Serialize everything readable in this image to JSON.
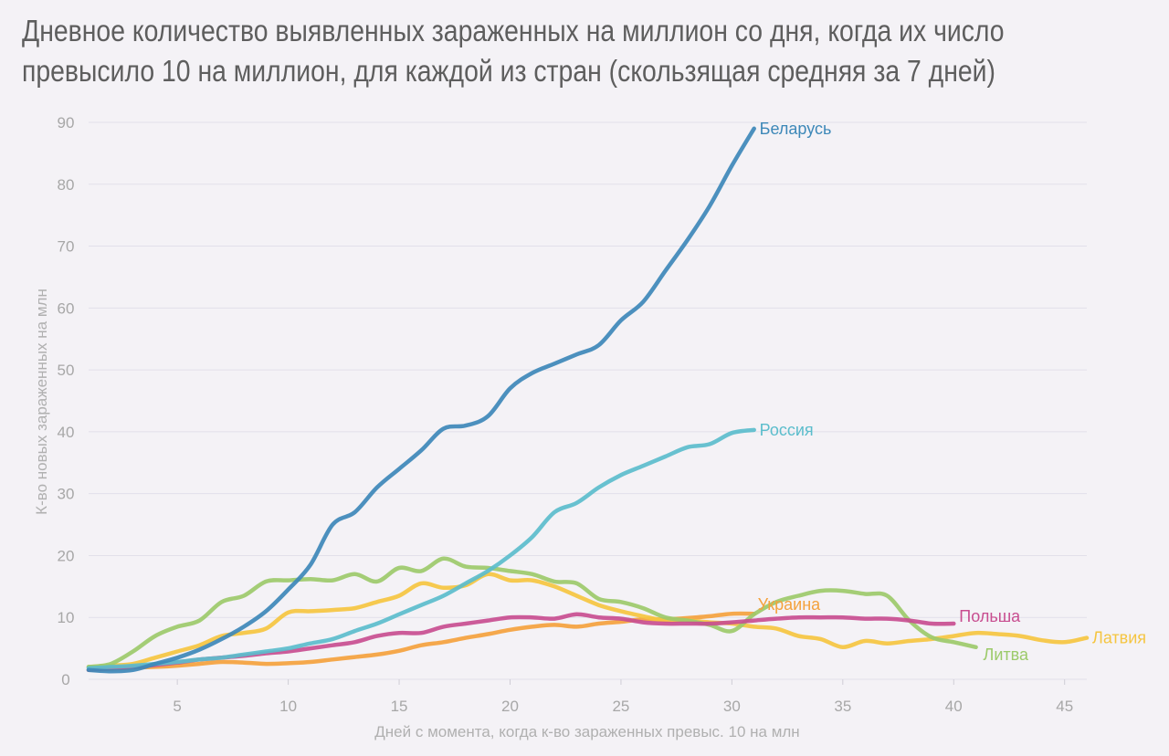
{
  "chart_data": {
    "type": "line",
    "title": "Дневное количество выявленных зараженных на миллион со дня, когда их число превысило 10 на миллион, для каждой из стран (скользящая средняя за 7 дней)",
    "title_lines": [
      "Дневное количество выявленных зараженных на миллион со дня, когда их число",
      "превысило 10 на миллион, для каждой из стран (скользящая средняя за 7 дней)"
    ],
    "xlabel": "Дней с момента, когда к-во зараженных превыс. 10 на млн",
    "ylabel": "К-во новых зараженных на млн",
    "xlim": [
      1,
      46
    ],
    "ylim": [
      0,
      90
    ],
    "x_ticks": [
      5,
      10,
      15,
      20,
      25,
      30,
      35,
      40,
      45
    ],
    "y_ticks": [
      0,
      10,
      20,
      30,
      40,
      50,
      60,
      70,
      80,
      90
    ],
    "grid": true,
    "legend": "inline labels at line ends",
    "series": [
      {
        "name": "Беларусь",
        "color": "#3d88b8",
        "x": [
          1,
          2,
          3,
          4,
          5,
          6,
          7,
          8,
          9,
          10,
          11,
          12,
          13,
          14,
          15,
          16,
          17,
          18,
          19,
          20,
          21,
          22,
          23,
          24,
          25,
          26,
          27,
          28,
          29,
          30,
          31
        ],
        "y": [
          1.5,
          1.3,
          1.5,
          2.5,
          3.5,
          4.8,
          6.5,
          8.5,
          11,
          14.5,
          18.5,
          25,
          27,
          31,
          34,
          37,
          40.5,
          41,
          42.5,
          47,
          49.5,
          51,
          52.5,
          54,
          58,
          61,
          66,
          71,
          76.5,
          83,
          89
        ]
      },
      {
        "name": "Россия",
        "color": "#5bbdcc",
        "x": [
          1,
          2,
          3,
          4,
          5,
          6,
          7,
          8,
          9,
          10,
          11,
          12,
          13,
          14,
          15,
          16,
          17,
          18,
          19,
          20,
          21,
          22,
          23,
          24,
          25,
          26,
          27,
          28,
          29,
          30,
          31
        ],
        "y": [
          1.8,
          2,
          2.2,
          2.5,
          2.8,
          3.2,
          3.5,
          4,
          4.5,
          5,
          5.8,
          6.5,
          7.8,
          9,
          10.5,
          12,
          13.5,
          15.5,
          17.5,
          20,
          23,
          27,
          28.5,
          31,
          33,
          34.5,
          36,
          37.5,
          38,
          39.8,
          40.3
        ]
      },
      {
        "name": "Литва",
        "color": "#9cca6a",
        "x": [
          1,
          2,
          3,
          4,
          5,
          6,
          7,
          8,
          9,
          10,
          11,
          12,
          13,
          14,
          15,
          16,
          17,
          18,
          19,
          20,
          21,
          22,
          23,
          24,
          25,
          26,
          27,
          28,
          29,
          30,
          31,
          32,
          33,
          34,
          35,
          36,
          37,
          38,
          39,
          40,
          41
        ],
        "y": [
          2,
          2.5,
          4.5,
          7,
          8.5,
          9.5,
          12.5,
          13.5,
          15.8,
          16,
          16.2,
          16,
          17,
          15.8,
          18,
          17.5,
          19.5,
          18.2,
          18,
          17.5,
          17,
          15.8,
          15.5,
          13,
          12.5,
          11.5,
          10,
          9.5,
          8.8,
          7.8,
          10.5,
          12.5,
          13.5,
          14.3,
          14.3,
          13.8,
          13.5,
          9.5,
          6.8,
          6,
          5.2
        ]
      },
      {
        "name": "Латвия",
        "color": "#f5c540",
        "x": [
          1,
          2,
          3,
          4,
          5,
          6,
          7,
          8,
          9,
          10,
          11,
          12,
          13,
          14,
          15,
          16,
          17,
          18,
          19,
          20,
          21,
          22,
          23,
          24,
          25,
          26,
          27,
          28,
          29,
          30,
          31,
          32,
          33,
          34,
          35,
          36,
          37,
          38,
          39,
          40,
          41,
          42,
          43,
          44,
          45,
          46
        ],
        "y": [
          2,
          2.2,
          2.5,
          3.5,
          4.5,
          5.5,
          7,
          7.5,
          8.2,
          10.8,
          11,
          11.2,
          11.5,
          12.5,
          13.5,
          15.5,
          14.8,
          15.2,
          17,
          16,
          16,
          15,
          13.5,
          12,
          11,
          10.2,
          9.5,
          9.5,
          9.2,
          9,
          8.5,
          8.2,
          7,
          6.5,
          5.2,
          6.2,
          5.8,
          6.2,
          6.5,
          7,
          7.5,
          7.3,
          7,
          6.3,
          6,
          6.7
        ]
      },
      {
        "name": "Польша",
        "color": "#c84e90",
        "x": [
          1,
          2,
          3,
          4,
          5,
          6,
          7,
          8,
          9,
          10,
          11,
          12,
          13,
          14,
          15,
          16,
          17,
          18,
          19,
          20,
          21,
          22,
          23,
          24,
          25,
          26,
          27,
          28,
          29,
          30,
          31,
          32,
          33,
          34,
          35,
          36,
          37,
          38,
          39,
          40
        ],
        "y": [
          1.5,
          1.8,
          2,
          2.3,
          2.7,
          3.2,
          3.5,
          3.8,
          4.2,
          4.5,
          5,
          5.5,
          6,
          7,
          7.5,
          7.5,
          8.5,
          9,
          9.5,
          10,
          10,
          9.8,
          10.5,
          10,
          9.8,
          9.2,
          9,
          9,
          9,
          9.2,
          9.5,
          9.8,
          10,
          10,
          10,
          9.8,
          9.8,
          9.5,
          9,
          9
        ]
      },
      {
        "name": "Украина",
        "color": "#f4a23d",
        "x": [
          1,
          2,
          3,
          4,
          5,
          6,
          7,
          8,
          9,
          10,
          11,
          12,
          13,
          14,
          15,
          16,
          17,
          18,
          19,
          20,
          21,
          22,
          23,
          24,
          25,
          26,
          27,
          28,
          29,
          30,
          31
        ],
        "y": [
          1.5,
          1.7,
          1.9,
          2,
          2.2,
          2.5,
          2.8,
          2.7,
          2.5,
          2.6,
          2.8,
          3.2,
          3.6,
          4,
          4.6,
          5.5,
          6,
          6.7,
          7.3,
          8,
          8.5,
          8.8,
          8.5,
          9,
          9.3,
          9.7,
          9.7,
          9.9,
          10.2,
          10.6,
          10.6
        ]
      }
    ]
  }
}
